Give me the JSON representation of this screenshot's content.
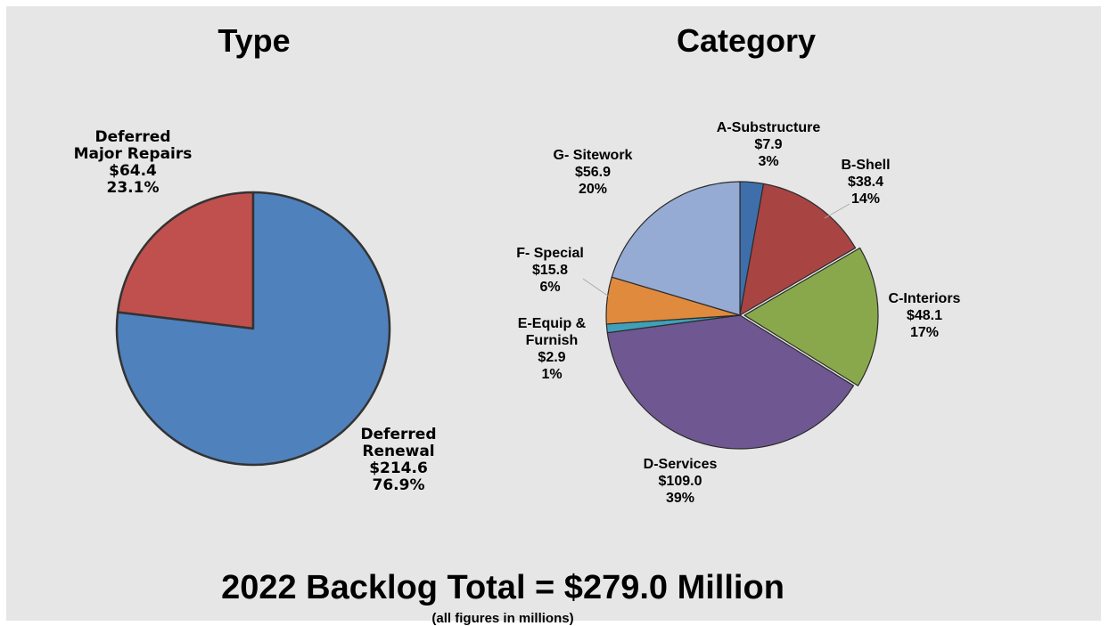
{
  "footer": {
    "total": "2022 Backlog Total = $279.0 Million",
    "note": "(all figures in millions)"
  },
  "chart_data": [
    {
      "type": "pie",
      "title": "Type",
      "slices": [
        {
          "key": "deferred-major-repairs",
          "label_lines": [
            "Deferred",
            "Major Repairs",
            "$64.4",
            "23.1%"
          ],
          "value": 64.4,
          "percent": 23.1,
          "color": "#c0504d"
        },
        {
          "key": "deferred-renewal",
          "label_lines": [
            "Deferred",
            "Renewal",
            "$214.6",
            "76.9%"
          ],
          "value": 214.6,
          "percent": 76.9,
          "color": "#4f81bd"
        }
      ],
      "direction": "counterclockwise",
      "start_angle": "12 o'clock"
    },
    {
      "type": "pie",
      "title": "Category",
      "slices": [
        {
          "key": "a-substructure",
          "label_lines": [
            "A-Substructure",
            "$7.9",
            "3%"
          ],
          "value": 7.9,
          "percent": 3,
          "color": "#3f6faa"
        },
        {
          "key": "b-shell",
          "label_lines": [
            "B-Shell",
            "$38.4",
            "14%"
          ],
          "value": 38.4,
          "percent": 14,
          "color": "#a84543"
        },
        {
          "key": "c-interiors",
          "label_lines": [
            "C-Interiors",
            "$48.1",
            "17%"
          ],
          "value": 48.1,
          "percent": 17,
          "color": "#89a84c"
        },
        {
          "key": "d-services",
          "label_lines": [
            "D-Services",
            "$109.0",
            "39%"
          ],
          "value": 109.0,
          "percent": 39,
          "color": "#6f5791"
        },
        {
          "key": "e-equip-furnish",
          "label_lines": [
            "E-Equip &",
            "Furnish",
            "$2.9",
            "1%"
          ],
          "value": 2.9,
          "percent": 1,
          "color": "#3fa0b8"
        },
        {
          "key": "f-special",
          "label_lines": [
            "F- Special",
            "$15.8",
            "6%"
          ],
          "value": 15.8,
          "percent": 6,
          "color": "#e08a3e"
        },
        {
          "key": "g-sitework",
          "label_lines": [
            "G- Sitework",
            "$56.9",
            "20%"
          ],
          "value": 56.9,
          "percent": 20,
          "color": "#95abd4"
        }
      ],
      "direction": "clockwise",
      "start_angle": "12 o'clock",
      "exploded_slices": [
        "c-interiors"
      ]
    }
  ]
}
